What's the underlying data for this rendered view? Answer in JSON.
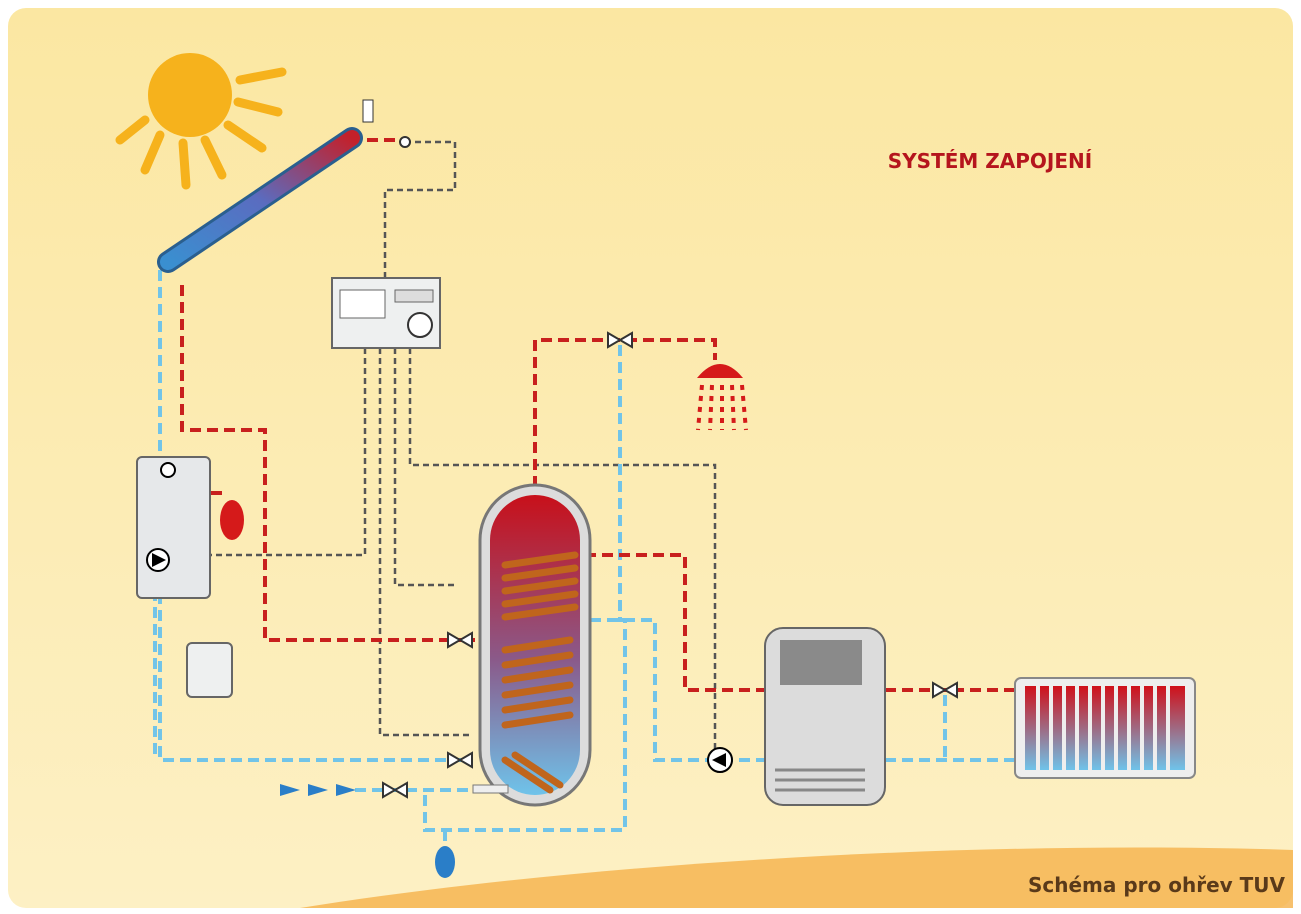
{
  "header": {
    "title": "SYSTÉM ZAPOJENÍ"
  },
  "footer": {
    "caption": "Schéma pro ohřev TUV"
  }
}
